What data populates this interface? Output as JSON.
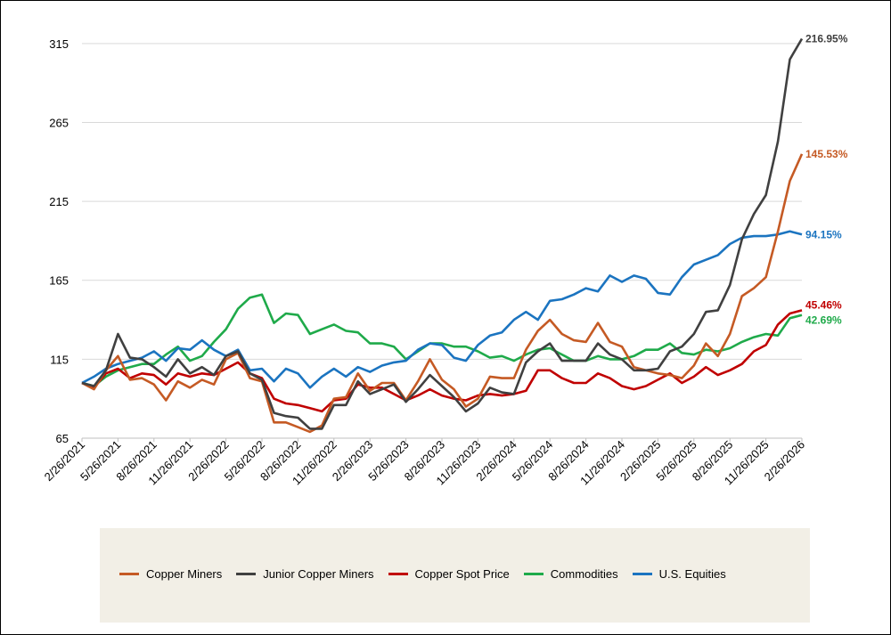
{
  "chart_data": {
    "type": "line",
    "title": "",
    "xlabel": "",
    "ylabel": "",
    "ylim": [
      65,
      320
    ],
    "yticks": [
      65,
      115,
      165,
      215,
      265,
      315
    ],
    "grid": "horizontal",
    "legend_position": "bottom",
    "x_tick_labels": [
      "2/26/2021",
      "5/26/2021",
      "8/26/2021",
      "11/26/2021",
      "2/26/2022",
      "5/26/2022",
      "8/26/2022",
      "11/26/2022",
      "2/26/2023",
      "5/26/2023",
      "8/26/2023",
      "11/26/2023",
      "2/26/2024",
      "5/26/2024",
      "8/26/2024",
      "11/26/2024",
      "2/26/2025",
      "5/26/2025",
      "8/26/2025",
      "11/26/2025",
      "2/26/2026"
    ],
    "series": [
      {
        "name": "Copper Miners",
        "color": "#c55a24",
        "end_label": "145.53%",
        "values": [
          100,
          96,
          108,
          117,
          102,
          103,
          99,
          89,
          101,
          97,
          102,
          99,
          115,
          119,
          103,
          101,
          75,
          75,
          72,
          69,
          73,
          90,
          91,
          106,
          95,
          100,
          100,
          89,
          101,
          115,
          102,
          96,
          85,
          90,
          104,
          103,
          103,
          121,
          133,
          140,
          131,
          127,
          126,
          138,
          126,
          123,
          110,
          108,
          106,
          105,
          103,
          111,
          125,
          117,
          131,
          155,
          160,
          167,
          196,
          228,
          245
        ]
      },
      {
        "name": "Junior Copper Miners",
        "color": "#404040",
        "end_label": "216.95%",
        "values": [
          100,
          98,
          108,
          131,
          116,
          115,
          110,
          104,
          115,
          106,
          110,
          105,
          117,
          120,
          106,
          102,
          81,
          79,
          78,
          71,
          71,
          86,
          86,
          101,
          93,
          96,
          99,
          88,
          96,
          105,
          98,
          91,
          82,
          87,
          97,
          94,
          93,
          113,
          120,
          125,
          114,
          114,
          114,
          125,
          118,
          115,
          108,
          108,
          109,
          120,
          123,
          131,
          145,
          146,
          162,
          191,
          207,
          219,
          253,
          305,
          318
        ]
      },
      {
        "name": "Copper Spot Price",
        "color": "#c00000",
        "end_label": "45.46%",
        "values": [
          100,
          97,
          106,
          109,
          103,
          106,
          105,
          99,
          106,
          104,
          106,
          105,
          109,
          113,
          106,
          103,
          90,
          87,
          86,
          84,
          82,
          89,
          90,
          99,
          97,
          97,
          93,
          89,
          92,
          96,
          92,
          90,
          89,
          92,
          93,
          92,
          93,
          95,
          108,
          108,
          103,
          100,
          100,
          106,
          103,
          98,
          96,
          98,
          102,
          106,
          100,
          104,
          110,
          105,
          108,
          112,
          120,
          124,
          137,
          144,
          146
        ]
      },
      {
        "name": "Commodities",
        "color": "#1faa4a",
        "end_label": "42.69%",
        "values": [
          100,
          98,
          104,
          108,
          110,
          112,
          112,
          118,
          123,
          114,
          117,
          126,
          134,
          147,
          154,
          156,
          138,
          144,
          143,
          131,
          134,
          137,
          133,
          132,
          125,
          125,
          123,
          115,
          120,
          125,
          125,
          123,
          123,
          120,
          116,
          117,
          114,
          118,
          121,
          122,
          118,
          114,
          114,
          117,
          115,
          115,
          117,
          121,
          121,
          125,
          119,
          118,
          121,
          120,
          122,
          126,
          129,
          131,
          130,
          141,
          143
        ]
      },
      {
        "name": "U.S. Equities",
        "color": "#1b74c0",
        "end_label": "94.15%",
        "values": [
          100,
          104,
          109,
          112,
          114,
          116,
          120,
          114,
          122,
          121,
          127,
          121,
          117,
          121,
          108,
          109,
          101,
          109,
          106,
          97,
          104,
          109,
          104,
          110,
          107,
          111,
          113,
          114,
          121,
          125,
          124,
          116,
          114,
          124,
          130,
          132,
          140,
          145,
          140,
          152,
          153,
          156,
          160,
          158,
          168,
          164,
          168,
          166,
          157,
          156,
          167,
          175,
          178,
          181,
          188,
          192,
          193,
          193,
          194,
          196,
          194
        ]
      }
    ]
  }
}
